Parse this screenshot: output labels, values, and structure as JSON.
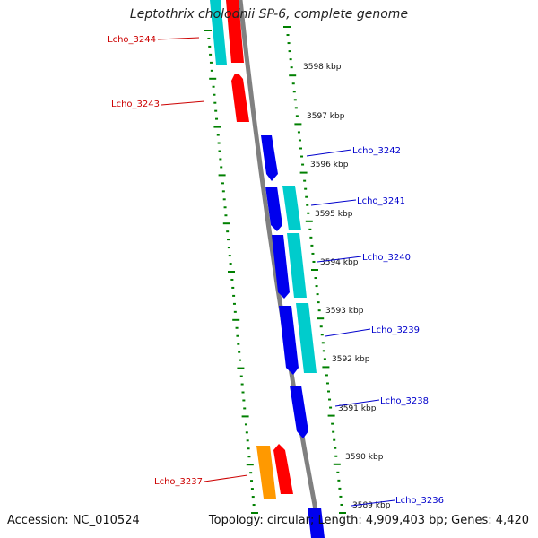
{
  "title": "Leptothrix cholodnii SP-6, complete genome",
  "footer": {
    "accession": "Accession: NC_010524",
    "stats": "Topology: circular; Length: 4,909,403 bp; Genes: 4,420"
  },
  "colors": {
    "backbone": "#808080",
    "tick": "#008000",
    "label_left": "#cc0000",
    "label_right": "#0000cc",
    "red": "#ff0000",
    "cyan": "#00cccc",
    "blue": "#0000ee",
    "orange": "#ff9900"
  },
  "kbp_labels": [
    {
      "kbp": 3598,
      "text": "3598 kbp"
    },
    {
      "kbp": 3597,
      "text": "3597 kbp"
    },
    {
      "kbp": 3596,
      "text": "3596 kbp"
    },
    {
      "kbp": 3595,
      "text": "3595 kbp"
    },
    {
      "kbp": 3594,
      "text": "3594 kbp"
    },
    {
      "kbp": 3593,
      "text": "3593 kbp"
    },
    {
      "kbp": 3592,
      "text": "3592 kbp"
    },
    {
      "kbp": 3591,
      "text": "3591 kbp"
    },
    {
      "kbp": 3590,
      "text": "3590 kbp"
    },
    {
      "kbp": 3589,
      "text": "3589 kbp"
    }
  ],
  "gene_labels": [
    {
      "id": "Lcho_3244",
      "side": "left"
    },
    {
      "id": "Lcho_3243",
      "side": "left"
    },
    {
      "id": "Lcho_3242",
      "side": "right"
    },
    {
      "id": "Lcho_3241",
      "side": "right"
    },
    {
      "id": "Lcho_3240",
      "side": "right"
    },
    {
      "id": "Lcho_3239",
      "side": "right"
    },
    {
      "id": "Lcho_3238",
      "side": "right"
    },
    {
      "id": "Lcho_3237",
      "side": "left"
    },
    {
      "id": "Lcho_3236",
      "side": "right"
    }
  ]
}
